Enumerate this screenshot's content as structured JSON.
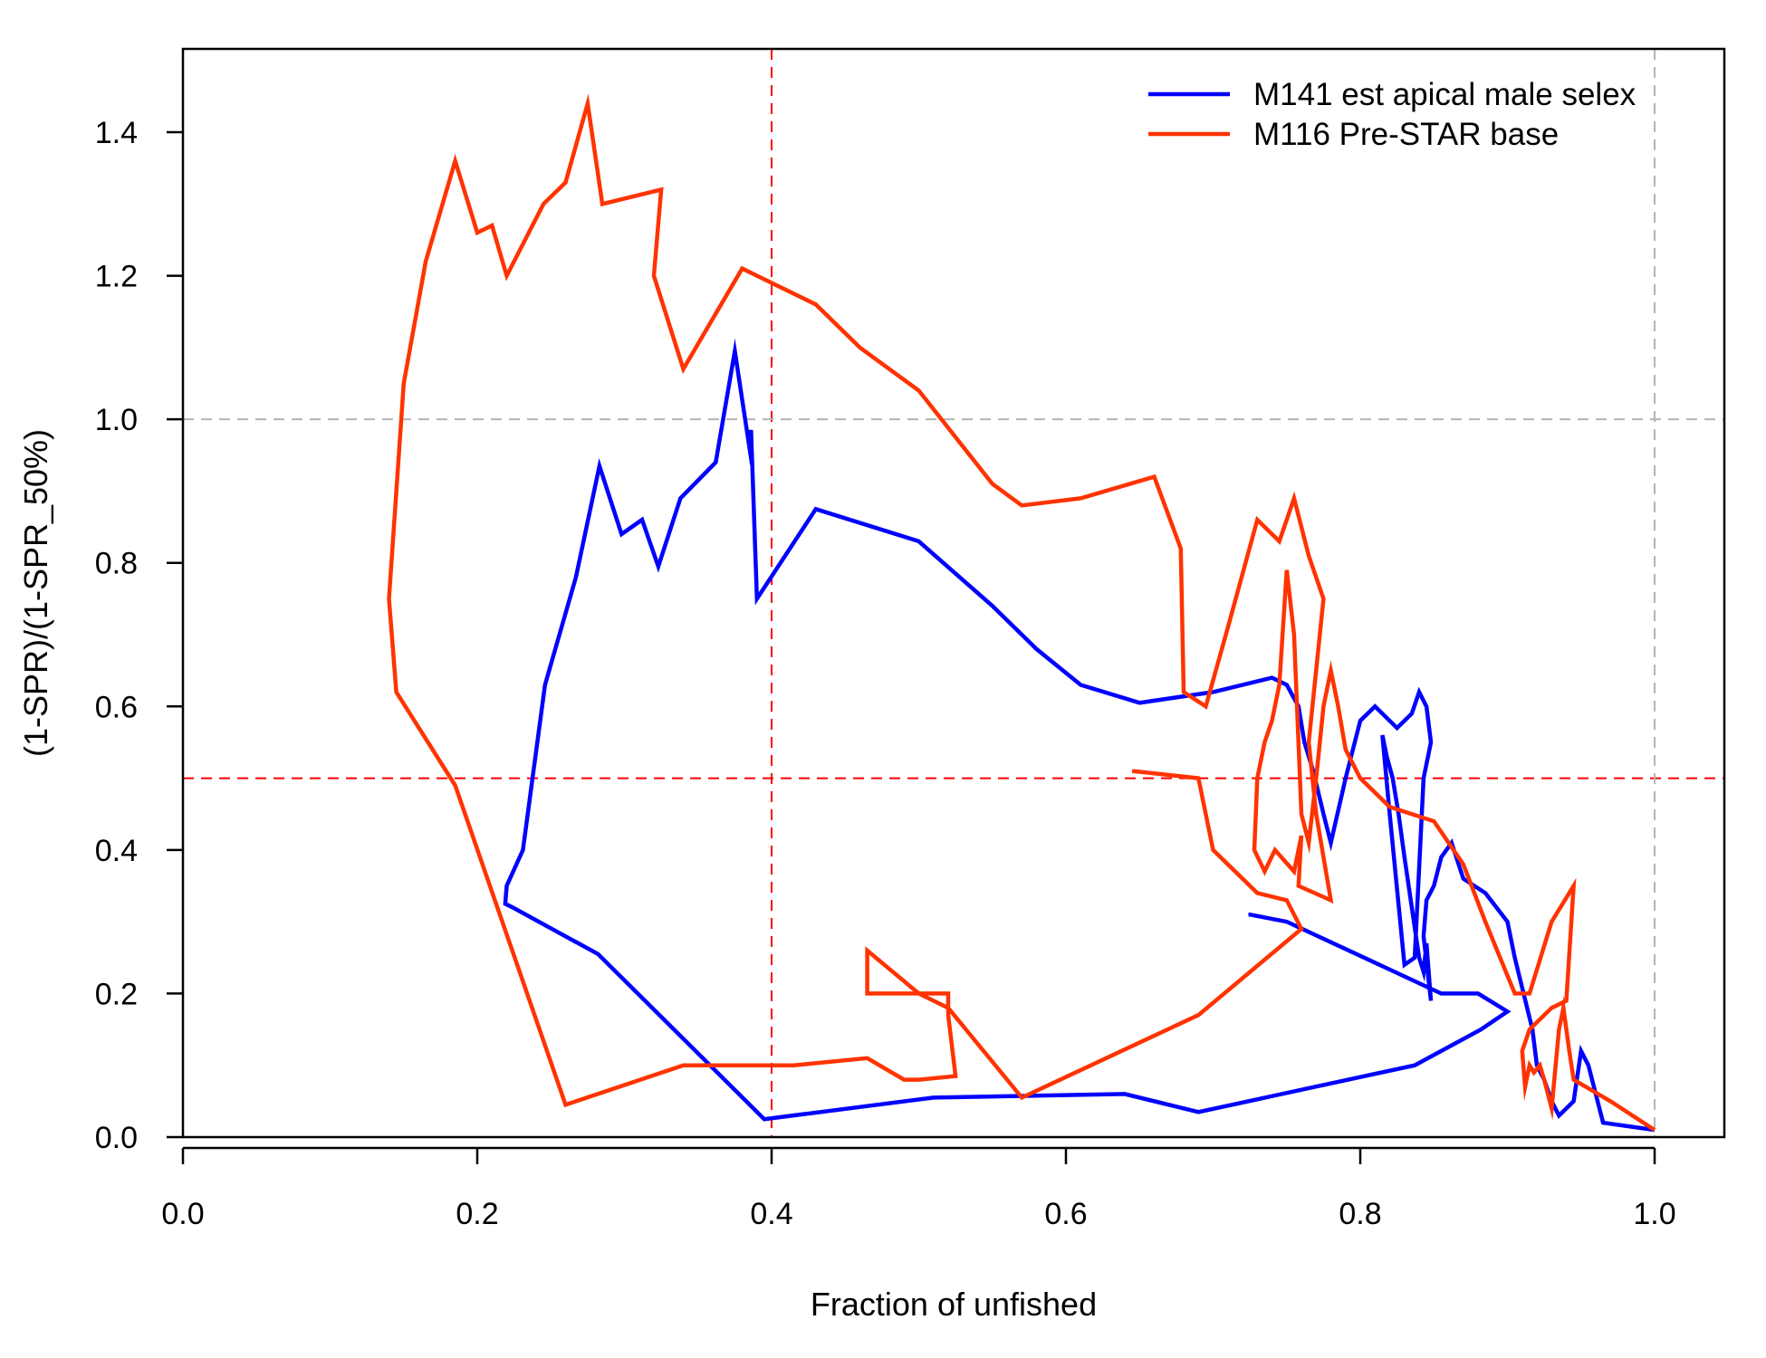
{
  "chart_data": {
    "type": "line",
    "title": "",
    "xlabel": "Fraction of unfished",
    "ylabel": "(1-SPR)/(1-SPR_50%)",
    "xlim": [
      0.0,
      1.0
    ],
    "ylim": [
      0.0,
      1.4
    ],
    "xticks": [
      "0.0",
      "0.2",
      "0.4",
      "0.6",
      "0.8",
      "1.0"
    ],
    "yticks": [
      "0.0",
      "0.2",
      "0.4",
      "0.6",
      "0.8",
      "1.0",
      "1.2",
      "1.4"
    ],
    "grid": false,
    "legend_position": "top-right",
    "reference_lines": [
      {
        "orientation": "vertical",
        "value": 0.4,
        "color": "#ff0000",
        "style": "dashed"
      },
      {
        "orientation": "horizontal",
        "value": 0.5,
        "color": "#ff0000",
        "style": "dashed"
      },
      {
        "orientation": "vertical",
        "value": 1.0,
        "color": "#b4b4b4",
        "style": "dashed"
      },
      {
        "orientation": "horizontal",
        "value": 1.0,
        "color": "#b4b4b4",
        "style": "dashed"
      }
    ],
    "series": [
      {
        "name": "M141 est apical male selex",
        "color": "#0000ff",
        "x": [
          1.0,
          0.965,
          0.955,
          0.95,
          0.945,
          0.935,
          0.93,
          0.925,
          0.92,
          0.917,
          0.905,
          0.9,
          0.885,
          0.87,
          0.862,
          0.855,
          0.85,
          0.845,
          0.843,
          0.848,
          0.845,
          0.843,
          0.84,
          0.835,
          0.83,
          0.826,
          0.822,
          0.818,
          0.815,
          0.82,
          0.83,
          0.837,
          0.843,
          0.848,
          0.845,
          0.84,
          0.835,
          0.825,
          0.81,
          0.8,
          0.79,
          0.78,
          0.775,
          0.768,
          0.762,
          0.758,
          0.75,
          0.74,
          0.7,
          0.65,
          0.61,
          0.58,
          0.55,
          0.5,
          0.43,
          0.39,
          0.386,
          0.385,
          0.375,
          0.362,
          0.338,
          0.323,
          0.312,
          0.298,
          0.283,
          0.267,
          0.246,
          0.231,
          0.22,
          0.219,
          0.224,
          0.282,
          0.395,
          0.51,
          0.64,
          0.69,
          0.837,
          0.882,
          0.9,
          0.88,
          0.86,
          0.855,
          0.75,
          0.75,
          0.725,
          0.724
        ],
        "y": [
          0.01,
          0.02,
          0.1,
          0.12,
          0.05,
          0.03,
          0.05,
          0.08,
          0.1,
          0.15,
          0.25,
          0.3,
          0.34,
          0.36,
          0.41,
          0.39,
          0.35,
          0.33,
          0.28,
          0.19,
          0.27,
          0.23,
          0.25,
          0.32,
          0.39,
          0.45,
          0.5,
          0.53,
          0.56,
          0.45,
          0.24,
          0.25,
          0.5,
          0.55,
          0.6,
          0.62,
          0.59,
          0.57,
          0.6,
          0.58,
          0.5,
          0.41,
          0.45,
          0.51,
          0.55,
          0.6,
          0.63,
          0.64,
          0.62,
          0.605,
          0.63,
          0.68,
          0.74,
          0.83,
          0.875,
          0.75,
          0.985,
          0.96,
          1.095,
          0.94,
          0.89,
          0.795,
          0.86,
          0.84,
          0.935,
          0.78,
          0.63,
          0.4,
          0.35,
          0.325,
          0.32,
          0.255,
          0.025,
          0.055,
          0.06,
          0.035,
          0.1,
          0.15,
          0.175,
          0.2,
          0.2,
          0.2,
          0.3,
          0.3,
          0.31,
          0.31
        ]
      },
      {
        "name": "M116 Pre-STAR base",
        "color": "#ff3300",
        "x": [
          1.0,
          0.97,
          0.945,
          0.942,
          0.938,
          0.935,
          0.93,
          0.925,
          0.922,
          0.918,
          0.915,
          0.912,
          0.91,
          0.915,
          0.93,
          0.94,
          0.945,
          0.93,
          0.915,
          0.905,
          0.885,
          0.87,
          0.85,
          0.82,
          0.8,
          0.79,
          0.785,
          0.78,
          0.775,
          0.77,
          0.765,
          0.76,
          0.755,
          0.75,
          0.745,
          0.74,
          0.735,
          0.73,
          0.728,
          0.735,
          0.742,
          0.755,
          0.76,
          0.758,
          0.78,
          0.77,
          0.765,
          0.775,
          0.765,
          0.755,
          0.75,
          0.745,
          0.73,
          0.71,
          0.695,
          0.68,
          0.678,
          0.66,
          0.61,
          0.57,
          0.55,
          0.5,
          0.46,
          0.43,
          0.38,
          0.34,
          0.32,
          0.325,
          0.285,
          0.275,
          0.26,
          0.245,
          0.22,
          0.21,
          0.2,
          0.185,
          0.165,
          0.15,
          0.14,
          0.145,
          0.185,
          0.26,
          0.34,
          0.415,
          0.465,
          0.49,
          0.5,
          0.525,
          0.52,
          0.52,
          0.5,
          0.465,
          0.465,
          0.5,
          0.52,
          0.57,
          0.69,
          0.76,
          0.75,
          0.73,
          0.7,
          0.69,
          0.645
        ],
        "y": [
          0.01,
          0.05,
          0.08,
          0.12,
          0.18,
          0.15,
          0.04,
          0.08,
          0.1,
          0.09,
          0.1,
          0.07,
          0.12,
          0.15,
          0.18,
          0.19,
          0.35,
          0.3,
          0.2,
          0.2,
          0.3,
          0.38,
          0.44,
          0.46,
          0.5,
          0.54,
          0.6,
          0.65,
          0.6,
          0.5,
          0.41,
          0.45,
          0.7,
          0.79,
          0.63,
          0.58,
          0.55,
          0.5,
          0.4,
          0.37,
          0.4,
          0.37,
          0.42,
          0.35,
          0.33,
          0.45,
          0.55,
          0.75,
          0.81,
          0.89,
          0.86,
          0.83,
          0.86,
          0.71,
          0.6,
          0.62,
          0.82,
          0.92,
          0.89,
          0.88,
          0.91,
          1.04,
          1.1,
          1.16,
          1.21,
          1.07,
          1.2,
          1.32,
          1.3,
          1.44,
          1.33,
          1.3,
          1.2,
          1.27,
          1.26,
          1.36,
          1.22,
          1.05,
          0.75,
          0.62,
          0.49,
          0.045,
          0.1,
          0.1,
          0.11,
          0.08,
          0.08,
          0.085,
          0.17,
          0.2,
          0.2,
          0.2,
          0.26,
          0.2,
          0.18,
          0.055,
          0.17,
          0.29,
          0.33,
          0.34,
          0.4,
          0.5,
          0.51
        ]
      }
    ]
  }
}
